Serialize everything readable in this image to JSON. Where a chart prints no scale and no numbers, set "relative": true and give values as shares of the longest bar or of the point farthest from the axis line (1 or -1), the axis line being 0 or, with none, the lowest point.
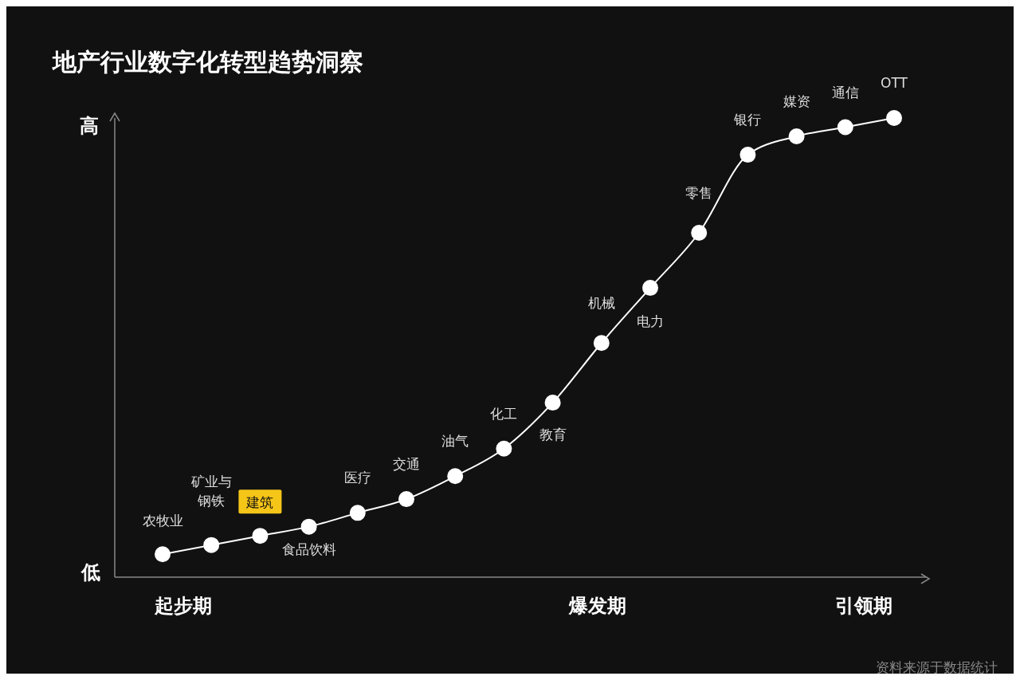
{
  "chart_data": {
    "type": "line",
    "title": "地产行业数字化转型趋势洞察",
    "categories": [
      "农牧业",
      "矿业与钢铁",
      "建筑",
      "食品饮料",
      "医疗",
      "交通",
      "油气",
      "化工",
      "教育",
      "机械",
      "电力",
      "零售",
      "银行",
      "媒资",
      "通信",
      "OTT"
    ],
    "series": [
      {
        "color": "#ffffff",
        "values": [
          0.05,
          0.07,
          0.09,
          0.11,
          0.14,
          0.17,
          0.22,
          0.28,
          0.38,
          0.51,
          0.63,
          0.75,
          0.92,
          0.96,
          0.98,
          1
        ]
      }
    ],
    "relative": true,
    "marker": "circle",
    "line_style": "solid",
    "grid": false,
    "legend": false,
    "annotations": [
      "高",
      "低",
      "起步期",
      "爆发期",
      "引领期",
      "资料来源于数据统计"
    ]
  }
}
